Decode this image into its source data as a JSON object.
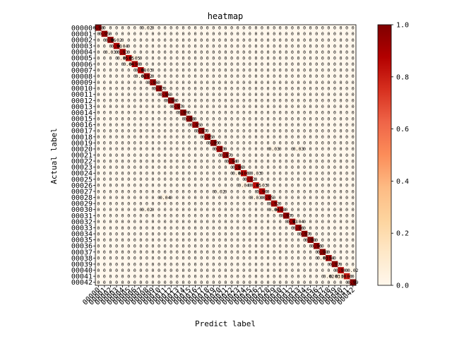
{
  "chart_data": {
    "type": "heatmap",
    "title": "heatmap",
    "xlabel": "Predict label",
    "ylabel": "Actual label",
    "categories": [
      "00000",
      "00001",
      "00002",
      "00003",
      "00004",
      "00005",
      "00006",
      "00007",
      "00008",
      "00009",
      "00010",
      "00011",
      "00012",
      "00013",
      "00014",
      "00015",
      "00016",
      "00017",
      "00018",
      "00019",
      "00020",
      "00021",
      "00022",
      "00023",
      "00024",
      "00025",
      "00026",
      "00027",
      "00028",
      "00029",
      "00030",
      "00031",
      "00032",
      "00033",
      "00034",
      "00035",
      "00036",
      "00037",
      "00038",
      "00039",
      "00040",
      "00041",
      "00042"
    ],
    "diagonal": [
      0.98,
      0.95,
      0.96,
      0.9,
      0.93,
      0.85,
      0.9,
      0.88,
      0.92,
      0.96,
      0.97,
      0.96,
      0.98,
      0.97,
      0.99,
      0.98,
      0.95,
      0.97,
      0.95,
      0.99,
      0.93,
      0.97,
      0.94,
      0.96,
      0.86,
      0.92,
      0.85,
      0.9,
      0.95,
      0.92,
      0.88,
      0.97,
      0.93,
      0.96,
      0.97,
      0.98,
      0.96,
      0.98,
      0.94,
      0.97,
      0.9,
      0.8,
      0.99
    ],
    "off_diagonal": [
      {
        "row": 0,
        "col": 8,
        "value": 0.02
      },
      {
        "row": 2,
        "col": 3,
        "value": 0.02
      },
      {
        "row": 3,
        "col": 4,
        "value": 0.04
      },
      {
        "row": 4,
        "col": 2,
        "value": 0.03
      },
      {
        "row": 5,
        "col": 4,
        "value": 0.05
      },
      {
        "row": 5,
        "col": 6,
        "value": 0.05
      },
      {
        "row": 6,
        "col": 5,
        "value": 0.04
      },
      {
        "row": 7,
        "col": 8,
        "value": 0.03
      },
      {
        "row": 8,
        "col": 7,
        "value": 0.02
      },
      {
        "row": 20,
        "col": 29,
        "value": 0.03
      },
      {
        "row": 20,
        "col": 33,
        "value": 0.03
      },
      {
        "row": 24,
        "col": 23,
        "value": 0.04
      },
      {
        "row": 24,
        "col": 26,
        "value": 0.03
      },
      {
        "row": 26,
        "col": 24,
        "value": 0.04
      },
      {
        "row": 26,
        "col": 27,
        "value": 0.03
      },
      {
        "row": 27,
        "col": 20,
        "value": 0.02
      },
      {
        "row": 28,
        "col": 11,
        "value": 0.04
      },
      {
        "row": 28,
        "col": 26,
        "value": 0.03
      },
      {
        "row": 30,
        "col": 29,
        "value": 0.04
      },
      {
        "row": 30,
        "col": 8,
        "value": 0.02
      },
      {
        "row": 32,
        "col": 33,
        "value": 0.04
      },
      {
        "row": 38,
        "col": 37,
        "value": 0.03
      },
      {
        "row": 40,
        "col": 42,
        "value": 0.02
      },
      {
        "row": 41,
        "col": 40,
        "value": 0.1
      },
      {
        "row": 41,
        "col": 39,
        "value": 0.03
      },
      {
        "row": 41,
        "col": 38,
        "value": 0.02
      }
    ],
    "vmin": 0.0,
    "vmax": 1.0,
    "colormap": "OrRd",
    "colorbar_ticks": [
      "0.0",
      "0.2",
      "0.4",
      "0.6",
      "0.8",
      "1.0"
    ],
    "grid": false
  }
}
